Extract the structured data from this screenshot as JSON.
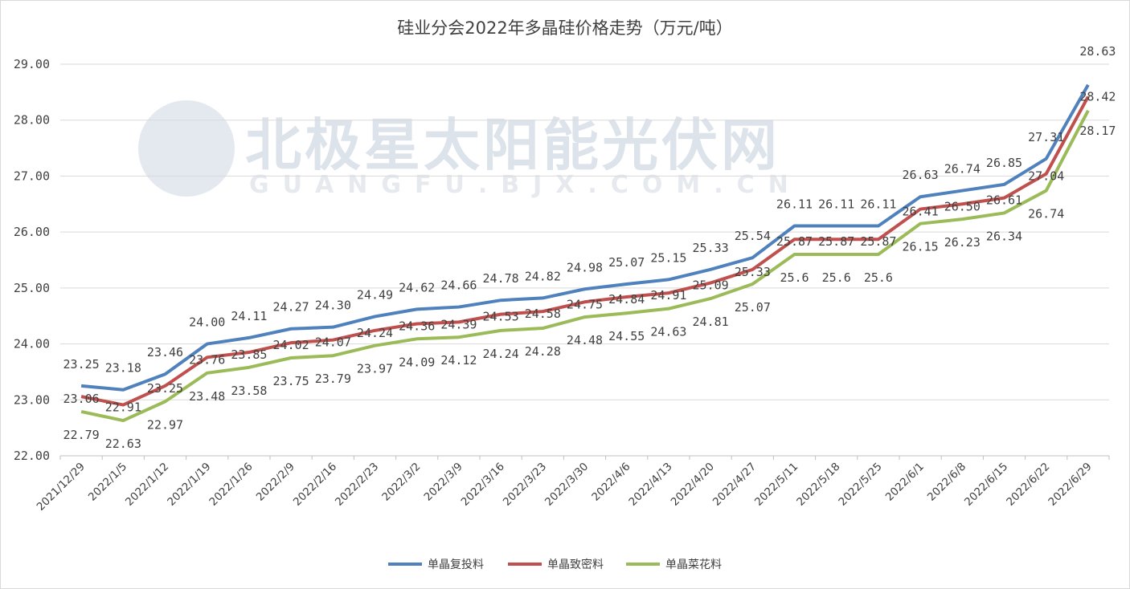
{
  "chart_data": {
    "type": "line",
    "title": "硅业分会2022年多晶硅价格走势（万元/吨）",
    "xlabel": "",
    "ylabel": "",
    "ylim": [
      22,
      29
    ],
    "yticks": [
      "22.00",
      "23.00",
      "24.00",
      "25.00",
      "26.00",
      "27.00",
      "28.00",
      "29.00"
    ],
    "grid": true,
    "legend_position": "bottom",
    "categories": [
      "2021/12/29",
      "2022/1/5",
      "2022/1/12",
      "2022/1/19",
      "2022/1/26",
      "2022/2/9",
      "2022/2/16",
      "2022/2/23",
      "2022/3/2",
      "2022/3/9",
      "2022/3/16",
      "2022/3/23",
      "2022/3/30",
      "2022/4/6",
      "2022/4/13",
      "2022/4/20",
      "2022/4/27",
      "2022/5/11",
      "2022/5/18",
      "2022/5/25",
      "2022/6/1",
      "2022/6/8",
      "2022/6/15",
      "2022/6/22",
      "2022/6/29"
    ],
    "series": [
      {
        "name": "单晶复投料",
        "color": "#4f81bd",
        "values": [
          23.25,
          23.18,
          23.46,
          24.0,
          24.11,
          24.27,
          24.3,
          24.49,
          24.62,
          24.66,
          24.78,
          24.82,
          24.98,
          25.07,
          25.15,
          25.33,
          25.54,
          26.11,
          26.11,
          26.11,
          26.63,
          26.74,
          26.85,
          27.31,
          28.63
        ],
        "labels": [
          "23.25",
          "23.18",
          "23.46",
          "24.00",
          "24.11",
          "24.27",
          "24.30",
          "24.49",
          "24.62",
          "24.66",
          "24.78",
          "24.82",
          "24.98",
          "25.07",
          "25.15",
          "25.33",
          "25.54",
          "26.11",
          "26.11",
          "26.11",
          "26.63",
          "26.74",
          "26.85",
          "27.31",
          "28.63"
        ]
      },
      {
        "name": "单晶致密料",
        "color": "#c0504d",
        "values": [
          23.06,
          22.91,
          23.25,
          23.76,
          23.85,
          24.02,
          24.07,
          24.24,
          24.36,
          24.39,
          24.53,
          24.58,
          24.75,
          24.84,
          24.91,
          25.09,
          25.33,
          25.87,
          25.87,
          25.87,
          26.41,
          26.5,
          26.61,
          27.04,
          28.42
        ],
        "labels": [
          "23.06",
          "22.91",
          "23.25",
          "23.76",
          "23.85",
          "24.02",
          "24.07",
          "24.24",
          "24.36",
          "24.39",
          "24.53",
          "24.58",
          "24.75",
          "24.84",
          "24.91",
          "25.09",
          "25.33",
          "25.87",
          "25.87",
          "25.87",
          "26.41",
          "26.50",
          "26.61",
          "27.04",
          "28.42"
        ]
      },
      {
        "name": "单晶菜花料",
        "color": "#9bbb59",
        "values": [
          22.79,
          22.63,
          22.97,
          23.48,
          23.58,
          23.75,
          23.79,
          23.97,
          24.09,
          24.12,
          24.24,
          24.28,
          24.48,
          24.55,
          24.63,
          24.81,
          25.07,
          25.6,
          25.6,
          25.6,
          26.15,
          26.23,
          26.34,
          26.74,
          28.17
        ],
        "labels": [
          "22.79",
          "22.63",
          "22.97",
          "23.48",
          "23.58",
          "23.75",
          "23.79",
          "23.97",
          "24.09",
          "24.12",
          "24.24",
          "24.28",
          "24.48",
          "24.55",
          "24.63",
          "24.81",
          "25.07",
          "25.6",
          "25.6",
          "25.6",
          "26.15",
          "26.23",
          "26.34",
          "26.74",
          "28.17"
        ]
      }
    ]
  },
  "watermark": {
    "name": "北极星太阳能光伏网",
    "url": "GUANGFU.BJX.COM.CN"
  }
}
